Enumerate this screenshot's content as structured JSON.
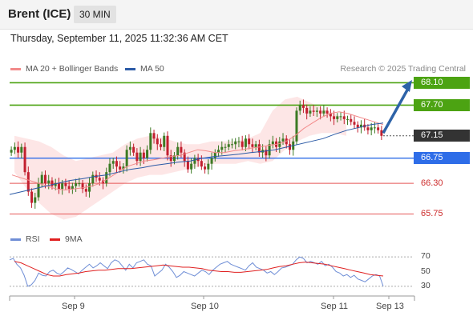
{
  "header": {
    "instrument": "Brent (ICE)",
    "interval": "30 MIN",
    "datetime": "Thursday, September 11, 2025 11:32:36 AM CET"
  },
  "legend": {
    "ma20_label": "MA 20 + Bollinger Bands",
    "ma50_label": "MA 50",
    "credit": "Research © 2025 Trading Central",
    "rsi_label": "RSI",
    "rsi_ma_label": "9MA"
  },
  "colors": {
    "resistance": "#4ca312",
    "support_blue": "#2e6de8",
    "support_red": "#e55757",
    "current_price_bg": "#333333",
    "arrow": "#2d63a8",
    "ma20": "#f28a8a",
    "ma50": "#2b5aa6",
    "bollinger_fill": "#fde2e2",
    "rsi": "#6f8ed6",
    "rsi_ma": "#e02020",
    "candle_up": "#3c7a24",
    "candle_down": "#c21f2f"
  },
  "chart_data": {
    "type": "candlestick",
    "y_range": [
      65.6,
      68.25
    ],
    "levels": [
      {
        "value": 68.1,
        "label": "68.10",
        "style": "resistance"
      },
      {
        "value": 67.7,
        "label": "67.70",
        "style": "resistance"
      },
      {
        "value": 67.15,
        "label": "67.15",
        "style": "current"
      },
      {
        "value": 66.75,
        "label": "66.75",
        "style": "support_blue"
      },
      {
        "value": 66.3,
        "label": "66.30",
        "style": "support_red"
      },
      {
        "value": 65.75,
        "label": "65.75",
        "style": "support_red"
      }
    ],
    "x_ticks": [
      "Sep 9",
      "Sep 10",
      "Sep 11",
      "Sep 13"
    ],
    "closes": [
      66.9,
      66.95,
      66.85,
      66.95,
      66.5,
      66.15,
      65.95,
      66.05,
      66.3,
      66.45,
      66.3,
      66.35,
      66.25,
      66.3,
      66.2,
      66.3,
      66.25,
      66.2,
      66.25,
      66.3,
      66.3,
      66.2,
      66.15,
      66.3,
      66.45,
      66.4,
      66.35,
      66.3,
      66.5,
      66.65,
      66.7,
      66.6,
      66.55,
      66.6,
      66.9,
      66.95,
      66.85,
      66.7,
      66.85,
      66.75,
      66.9,
      67.2,
      67.1,
      67.0,
      66.95,
      67.15,
      66.8,
      66.7,
      66.8,
      66.95,
      66.85,
      66.7,
      66.55,
      66.65,
      66.75,
      66.7,
      66.6,
      66.55,
      66.65,
      66.75,
      66.85,
      66.9,
      66.95,
      66.95,
      67.0,
      67.0,
      67.05,
      67.05,
      66.95,
      67.1,
      67.0,
      66.95,
      67.0,
      66.85,
      66.9,
      66.8,
      67.0,
      67.05,
      66.95,
      67.05,
      67.1,
      67.0,
      66.9,
      67.05,
      67.6,
      67.7,
      67.65,
      67.55,
      67.6,
      67.58,
      67.6,
      67.55,
      67.6,
      67.55,
      67.5,
      67.45,
      67.5,
      67.5,
      67.45,
      67.45,
      67.4,
      67.35,
      67.3,
      67.35,
      67.3,
      67.25,
      67.3,
      67.3,
      67.25,
      67.15
    ],
    "ma20_values": [
      66.45,
      66.4,
      66.35,
      66.3,
      66.25,
      66.2,
      66.18,
      66.2,
      66.22,
      66.25,
      66.3,
      66.4,
      66.5,
      66.6,
      66.65,
      66.7,
      66.72,
      66.75,
      66.78,
      66.8,
      66.85,
      66.9,
      66.88,
      66.85,
      66.85,
      66.88,
      66.9,
      66.93,
      66.95,
      66.98,
      67.0,
      67.05,
      67.15,
      67.28,
      67.38,
      67.48,
      67.55,
      67.58,
      67.55,
      67.5,
      67.45,
      67.4,
      67.35
    ],
    "ma50_values": [
      66.1,
      66.15,
      66.2,
      66.25,
      66.3,
      66.35,
      66.38,
      66.42,
      66.45,
      66.5,
      66.55,
      66.58,
      66.62,
      66.65,
      66.68,
      66.7,
      66.75,
      66.78,
      66.8,
      66.82,
      66.85,
      66.87,
      66.9,
      66.95,
      67.0,
      67.05,
      67.1,
      67.18,
      67.25,
      67.3,
      67.35,
      67.38
    ],
    "bollinger_upper": [
      67.15,
      67.1,
      67.05,
      66.95,
      66.8,
      66.7,
      66.75,
      66.8,
      66.85,
      67.0,
      67.1,
      67.15,
      67.12,
      67.05,
      67.0,
      67.0,
      67.05,
      67.05,
      67.05,
      67.1,
      67.2,
      67.6,
      67.8,
      67.85,
      67.75,
      67.65,
      67.55,
      67.45
    ],
    "bollinger_lower": [
      66.5,
      66.2,
      65.95,
      65.75,
      65.65,
      65.7,
      65.85,
      66.0,
      66.15,
      66.3,
      66.4,
      66.45,
      66.45,
      66.5,
      66.55,
      66.6,
      66.65,
      66.65,
      66.65,
      66.7,
      66.65,
      66.7,
      66.9,
      67.05,
      67.15,
      67.2,
      67.2,
      67.15
    ],
    "rsi": {
      "y_range": [
        20,
        80
      ],
      "ticks": [
        70,
        50,
        30
      ],
      "rsi_values": [
        66,
        68,
        60,
        55,
        45,
        30,
        32,
        38,
        48,
        45,
        44,
        50,
        52,
        48,
        46,
        50,
        55,
        53,
        50,
        47,
        52,
        56,
        60,
        55,
        58,
        62,
        58,
        54,
        62,
        66,
        64,
        58,
        52,
        60,
        55,
        62,
        64,
        66,
        60,
        58,
        44,
        48,
        52,
        60,
        56,
        50,
        42,
        45,
        50,
        48,
        46,
        44,
        48,
        52,
        50,
        46,
        52,
        56,
        60,
        62,
        64,
        60,
        58,
        56,
        54,
        52,
        58,
        62,
        56,
        54,
        52,
        48,
        50,
        46,
        50,
        55,
        56,
        58,
        60,
        66,
        70,
        68,
        62,
        64,
        62,
        60,
        64,
        58,
        60,
        56,
        50,
        48,
        44,
        46,
        42,
        45,
        40,
        38,
        36,
        40,
        44,
        46,
        44,
        30
      ],
      "rsi_ma_values": [
        64,
        62,
        58,
        54,
        50,
        46,
        44,
        44,
        46,
        47,
        48,
        50,
        51,
        52,
        52,
        53,
        54,
        54,
        54,
        55,
        56,
        57,
        58,
        59,
        58,
        57,
        56,
        56,
        55,
        54,
        52,
        51,
        50,
        50,
        49,
        49,
        50,
        51,
        52,
        53,
        55,
        57,
        58,
        60,
        62,
        63,
        62,
        61,
        60,
        58,
        56,
        54,
        52,
        50,
        48,
        46,
        45,
        44
      ]
    }
  }
}
